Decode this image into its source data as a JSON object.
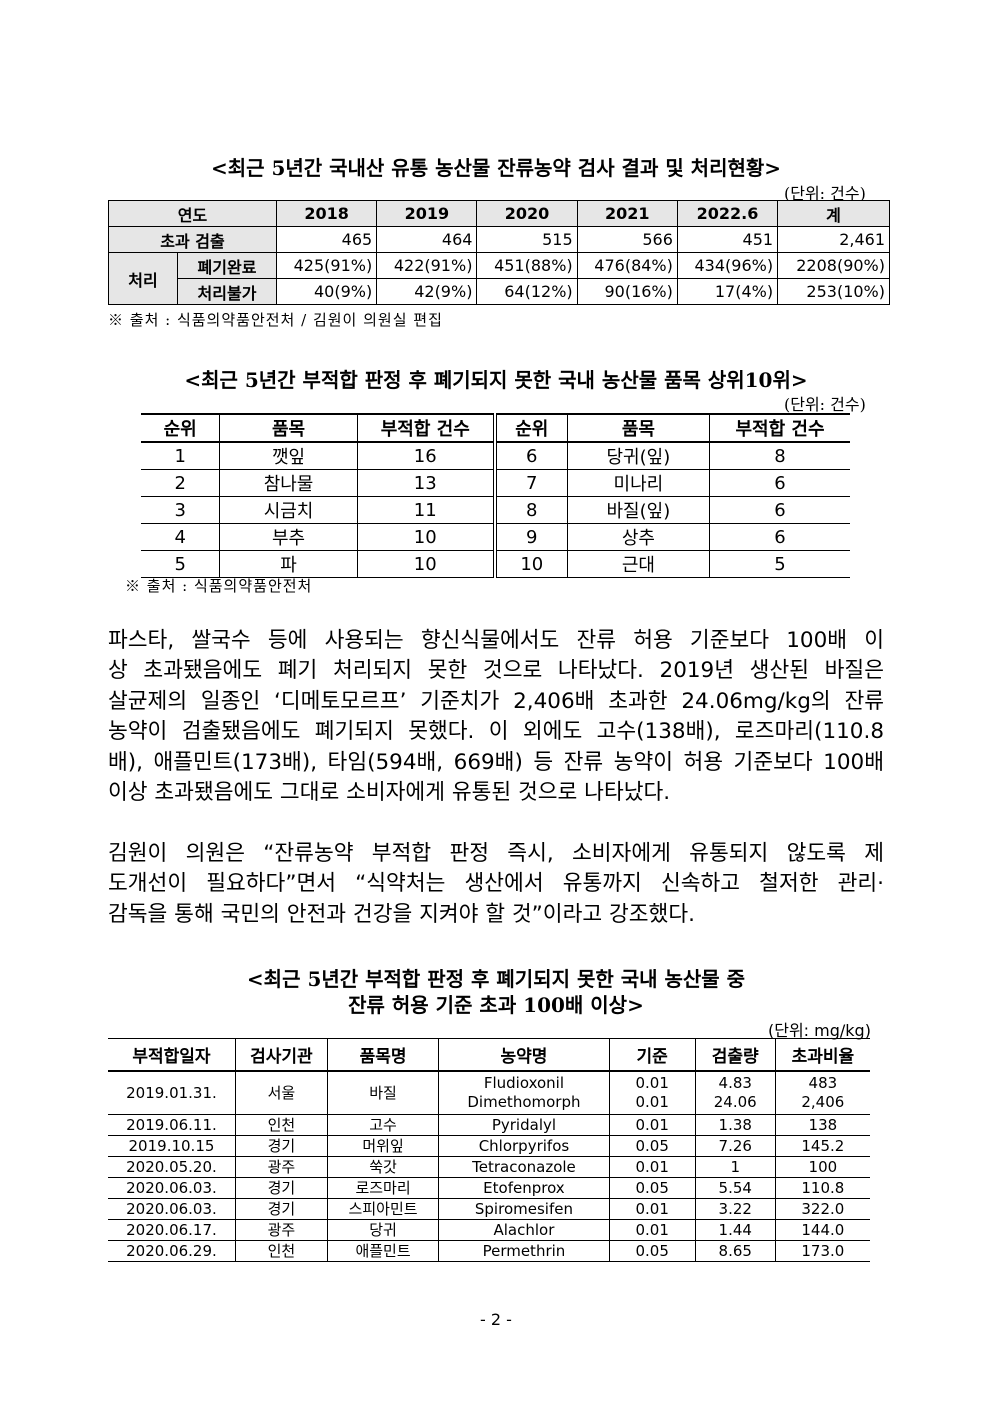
{
  "table1": {
    "title": "<최근 5년간 국내산 유통 농산물 잔류농약 검사 결과 및 처리현황>",
    "unit": "(단위: 건수)",
    "header": [
      "연도",
      "2018",
      "2019",
      "2020",
      "2021",
      "2022.6",
      "계"
    ],
    "exceed_label": "초과 검출",
    "exceed": [
      "465",
      "464",
      "515",
      "566",
      "451",
      "2,461"
    ],
    "process_label": "처리",
    "disposed_label": "폐기완료",
    "disposed": [
      "425(91%)",
      "422(91%)",
      "451(88%)",
      "476(84%)",
      "434(96%)",
      "2208(90%)"
    ],
    "failed_label": "처리불가",
    "failed": [
      "40(9%)",
      "42(9%)",
      "64(12%)",
      "90(16%)",
      "17(4%)",
      "253(10%)"
    ],
    "source": "※ 출처 : 식품의약품안전처 / 김원이 의원실 편집"
  },
  "table2": {
    "title": "<최근 5년간 부적합 판정 후 폐기되지 못한 국내 농산물 품목 상위10위>",
    "unit": "(단위: 건수)",
    "header": [
      "순위",
      "품목",
      "부적합 건수",
      "순위",
      "품목",
      "부적합 건수"
    ],
    "rows": [
      [
        "1",
        "깻잎",
        "16",
        "6",
        "당귀(잎)",
        "8"
      ],
      [
        "2",
        "참나물",
        "13",
        "7",
        "미나리",
        "6"
      ],
      [
        "3",
        "시금치",
        "11",
        "8",
        "바질(잎)",
        "6"
      ],
      [
        "4",
        "부추",
        "10",
        "9",
        "상추",
        "6"
      ],
      [
        "5",
        "파",
        "10",
        "10",
        "근대",
        "5"
      ]
    ],
    "source": "※ 출처 : 식품의약품안전처"
  },
  "paragraph1": [
    " 파스타, 쌀국수 등에 사용되는 향신식물에서도 잔류 허용 기준보다 100배 이",
    "상 초과됐음에도 폐기 처리되지 못한 것으로 나타났다. 2019년 생산된 바질은",
    "살균제의 일종인 ‘디메토모르프’ 기준치가 2,406배 초과한 24.06mg/kg의 잔류",
    "농약이 검출됐음에도 폐기되지 못했다. 이 외에도 고수(138배), 로즈마리(110.8",
    "배), 애플민트(173배), 타임(594배, 669배) 등 잔류 농약이 허용 기준보다 100배",
    "이상 초과됐음에도 그대로 소비자에게 유통된 것으로 나타났다."
  ],
  "paragraph2": [
    " 김원이 의원은 “잔류농약 부적합 판정 즉시, 소비자에게 유통되지 않도록 제",
    "도개선이 필요하다”면서 “식약처는 생산에서 유통까지 신속하고 철저한 관리·",
    "감독을 통해 국민의 안전과 건강을 지켜야 할 것”이라고 강조했다."
  ],
  "table3": {
    "title_line1": "<최근 5년간 부적합 판정 후 폐기되지 못한 국내 농산물 중",
    "title_line2": "잔류 허용 기준 초과 100배 이상>",
    "unit": "(단위: mg/kg)",
    "header": [
      "부적합일자",
      "검사기관",
      "품목명",
      "농약명",
      "기준",
      "검출량",
      "초과비율"
    ],
    "first": {
      "date": "2019.01.31.",
      "agency": "서울",
      "item": "바질",
      "pesticides": [
        "Fludioxonil",
        "Dimethomorph"
      ],
      "standard": [
        "0.01",
        "0.01"
      ],
      "detected": [
        "4.83",
        "24.06"
      ],
      "ratio": [
        "483",
        "2,406"
      ]
    },
    "rows": [
      [
        "2019.06.11.",
        "인천",
        "고수",
        "Pyridalyl",
        "0.01",
        "1.38",
        "138"
      ],
      [
        "2019.10.15",
        "경기",
        "머위잎",
        "Chlorpyrifos",
        "0.05",
        "7.26",
        "145.2"
      ],
      [
        "2020.05.20.",
        "광주",
        "쑥갓",
        "Tetraconazole",
        "0.01",
        "1",
        "100"
      ],
      [
        "2020.06.03.",
        "경기",
        "로즈마리",
        "Etofenprox",
        "0.05",
        "5.54",
        "110.8"
      ],
      [
        "2020.06.03.",
        "경기",
        "스피아민트",
        "Spiromesifen",
        "0.01",
        "3.22",
        "322.0"
      ],
      [
        "2020.06.17.",
        "광주",
        "당귀",
        "Alachlor",
        "0.01",
        "1.44",
        "144.0"
      ],
      [
        "2020.06.29.",
        "인천",
        "애플민트",
        "Permethrin",
        "0.05",
        "8.65",
        "173.0"
      ]
    ]
  },
  "page_number": "- 2 -"
}
